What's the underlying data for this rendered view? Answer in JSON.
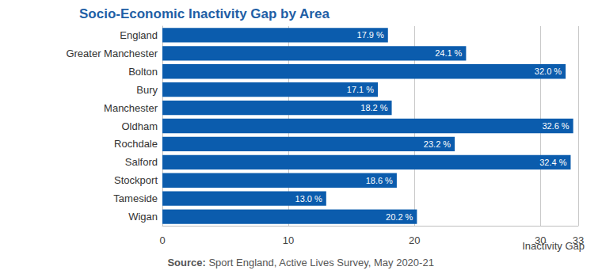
{
  "chart_data": {
    "type": "bar",
    "title": "Socio-Economic Inactivity Gap by Area",
    "categories": [
      "England",
      "Greater Manchester",
      "Bolton",
      "Bury",
      "Manchester",
      "Oldham",
      "Rochdale",
      "Salford",
      "Stockport",
      "Tameside",
      "Wigan"
    ],
    "values": [
      17.9,
      24.1,
      32.0,
      17.1,
      18.2,
      32.6,
      23.2,
      32.4,
      18.6,
      13.0,
      20.2
    ],
    "value_labels": [
      "17.9 %",
      "24.1 %",
      "32.0 %",
      "17.1 %",
      "18.2 %",
      "32.6 %",
      "23.2 %",
      "32.4 %",
      "18.6 %",
      "13.0 %",
      "20.2 %"
    ],
    "color": "#0b5cad",
    "orientation": "horizontal",
    "data_labels": true,
    "xlim": [
      0,
      33
    ],
    "xticks": [
      0,
      10,
      20,
      30
    ],
    "grid": true,
    "x_label": "Inactivity Gap",
    "annotations": [
      "Source: Sport England, Active Lives Survey, May 2020-21"
    ]
  }
}
